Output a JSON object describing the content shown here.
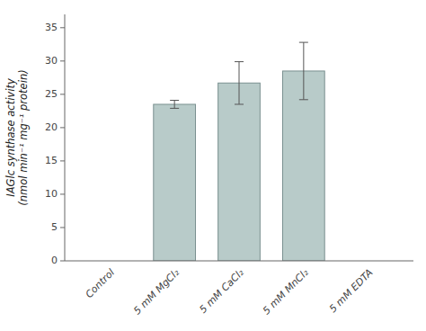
{
  "chart_data": {
    "type": "bar",
    "categories": [
      "Control",
      "5 mM MgCl₂",
      "5 mM CaCl₂",
      "5 mM MnCl₂",
      "5 mM EDTA"
    ],
    "values": [
      null,
      23.5,
      26.7,
      28.5,
      null
    ],
    "errors": [
      null,
      0.6,
      3.2,
      4.3,
      null
    ],
    "color": "#b8cbc9",
    "ylabel": "IAGlc synthase activity\n(nmol min⁻¹ mg⁻¹ protein)",
    "ylim": [
      0,
      37
    ],
    "yticks": [
      0,
      5,
      10,
      15,
      20,
      25,
      30,
      35
    ],
    "grid": false
  }
}
